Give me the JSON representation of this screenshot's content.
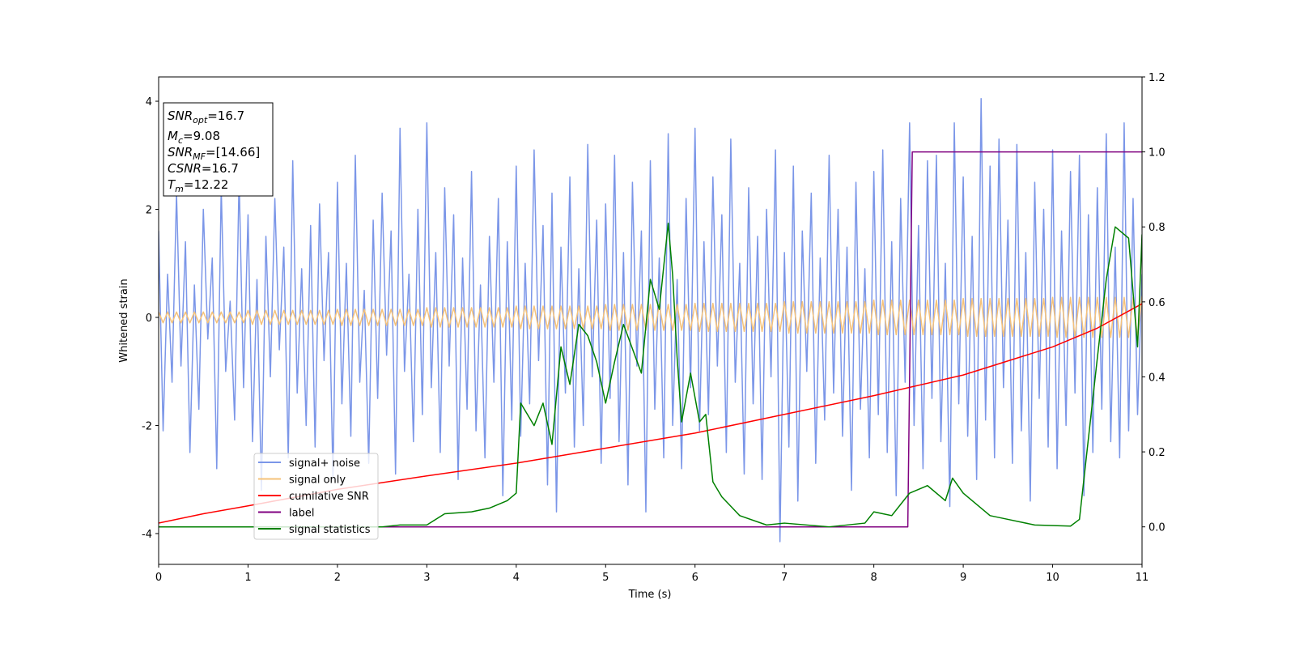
{
  "chart_data": {
    "type": "line",
    "xlabel": "Time (s)",
    "ylabel": "Whitened strain",
    "xlim": [
      0,
      11
    ],
    "xticks": [
      0,
      1,
      2,
      3,
      4,
      5,
      6,
      7,
      8,
      9,
      10,
      11
    ],
    "ylim": [
      -4.57,
      4.45
    ],
    "yticks": [
      -4,
      -2,
      0,
      2,
      4
    ],
    "y2lim": [
      -0.1,
      1.2
    ],
    "y2ticks": [
      {
        "value": 0,
        "label": "0.0"
      },
      0.2,
      0.4,
      0.6,
      0.8,
      {
        "value": 1,
        "label": "1.0"
      },
      1.2
    ],
    "legend": "lower left",
    "annotation": [
      {
        "text": "SNR",
        "sub": "opt",
        "suffix": "=16.7"
      },
      {
        "text": "M",
        "sub": "c",
        "suffix": "=9.08"
      },
      {
        "text": "SNR",
        "sub": "MF",
        "suffix": "=[14.66]"
      },
      {
        "text": "CSNR",
        "suffix": "=16.7"
      },
      {
        "text": "T",
        "sub": "m",
        "suffix": "=12.22"
      }
    ],
    "x": [
      0,
      0.05,
      0.1,
      0.15,
      0.2,
      0.25,
      0.3,
      0.35,
      0.4,
      0.45,
      0.5,
      0.55,
      0.6,
      0.65,
      0.7,
      0.75,
      0.8,
      0.85,
      0.9,
      0.95,
      1,
      1.05,
      1.1,
      1.15,
      1.2,
      1.25,
      1.3,
      1.35,
      1.4,
      1.45,
      1.5,
      1.55,
      1.6,
      1.65,
      1.7,
      1.75,
      1.8,
      1.85,
      1.9,
      1.95,
      2,
      2.05,
      2.1,
      2.15,
      2.2,
      2.25,
      2.3,
      2.35,
      2.4,
      2.45,
      2.5,
      2.55,
      2.6,
      2.65,
      2.7,
      2.75,
      2.8,
      2.85,
      2.9,
      2.95,
      3,
      3.05,
      3.1,
      3.15,
      3.2,
      3.25,
      3.3,
      3.35,
      3.4,
      3.45,
      3.5,
      3.55,
      3.6,
      3.65,
      3.7,
      3.75,
      3.8,
      3.85,
      3.9,
      3.95,
      4,
      4.05,
      4.1,
      4.15,
      4.2,
      4.25,
      4.3,
      4.35,
      4.4,
      4.45,
      4.5,
      4.55,
      4.6,
      4.65,
      4.7,
      4.75,
      4.8,
      4.85,
      4.9,
      4.95,
      5,
      5.05,
      5.1,
      5.15,
      5.2,
      5.25,
      5.3,
      5.35,
      5.4,
      5.45,
      5.5,
      5.55,
      5.6,
      5.65,
      5.7,
      5.75,
      5.8,
      5.85,
      5.9,
      5.95,
      6,
      6.05,
      6.1,
      6.15,
      6.2,
      6.25,
      6.3,
      6.35,
      6.4,
      6.45,
      6.5,
      6.55,
      6.6,
      6.65,
      6.7,
      6.75,
      6.8,
      6.85,
      6.9,
      6.95,
      7,
      7.05,
      7.1,
      7.15,
      7.2,
      7.25,
      7.3,
      7.35,
      7.4,
      7.45,
      7.5,
      7.55,
      7.6,
      7.65,
      7.7,
      7.75,
      7.8,
      7.85,
      7.9,
      7.95,
      8,
      8.05,
      8.1,
      8.15,
      8.2,
      8.25,
      8.3,
      8.35,
      8.4,
      8.45,
      8.5,
      8.55,
      8.6,
      8.65,
      8.7,
      8.75,
      8.8,
      8.85,
      8.9,
      8.95,
      9,
      9.05,
      9.1,
      9.15,
      9.2,
      9.25,
      9.3,
      9.35,
      9.4,
      9.45,
      9.5,
      9.55,
      9.6,
      9.65,
      9.7,
      9.75,
      9.8,
      9.85,
      9.9,
      9.95,
      10,
      10.05,
      10.1,
      10.15,
      10.2,
      10.25,
      10.3,
      10.35,
      10.4,
      10.45,
      10.5,
      10.55,
      10.6,
      10.65,
      10.7,
      10.75,
      10.8,
      10.85,
      10.9,
      10.95,
      11
    ],
    "series": [
      {
        "name": "signal+ noise",
        "color": "#7b96e8",
        "values": [
          1.6,
          -2.1,
          0.8,
          -1.2,
          2.3,
          -0.9,
          1.4,
          -2.5,
          0.6,
          -1.7,
          2.0,
          -0.4,
          1.1,
          -2.8,
          2.4,
          -1.0,
          0.3,
          -1.9,
          2.6,
          -1.3,
          1.9,
          -2.3,
          0.7,
          -3.2,
          1.5,
          -1.1,
          2.2,
          -0.6,
          1.3,
          -2.6,
          2.9,
          -1.4,
          0.9,
          -2.0,
          1.7,
          -2.4,
          2.1,
          -0.8,
          1.2,
          -3.0,
          2.5,
          -1.6,
          1.0,
          -2.2,
          3.0,
          -1.2,
          0.5,
          -2.7,
          1.8,
          -1.5,
          2.3,
          -0.7,
          1.6,
          -2.9,
          3.5,
          -1.0,
          0.8,
          -2.3,
          2.0,
          -1.8,
          3.6,
          -1.3,
          1.2,
          -2.5,
          2.4,
          -0.9,
          1.9,
          -3.0,
          1.1,
          -1.7,
          2.7,
          -2.1,
          0.6,
          -2.6,
          1.5,
          -1.2,
          2.2,
          -3.3,
          1.4,
          -1.9,
          2.8,
          -2.2,
          1.0,
          -1.6,
          3.1,
          -0.8,
          1.7,
          -3.1,
          2.3,
          -3.6,
          1.3,
          -1.4,
          2.6,
          -2.4,
          0.9,
          -2.0,
          3.2,
          -1.1,
          1.8,
          -2.7,
          2.1,
          -1.5,
          3.0,
          -2.3,
          1.2,
          -3.1,
          2.5,
          -0.9,
          1.6,
          -3.6,
          2.9,
          -1.7,
          1.1,
          -2.6,
          3.4,
          -2.0,
          0.7,
          -2.8,
          2.2,
          -1.3,
          3.5,
          -2.1,
          1.4,
          -1.8,
          2.6,
          -0.9,
          1.9,
          -2.5,
          3.3,
          -1.2,
          1.0,
          -2.9,
          2.4,
          -1.6,
          1.5,
          -3.0,
          2.0,
          -1.1,
          3.1,
          -4.15,
          1.2,
          -2.4,
          2.8,
          -3.4,
          1.6,
          -1.0,
          2.3,
          -2.7,
          1.1,
          -1.9,
          3.0,
          -1.4,
          2.0,
          -2.2,
          1.3,
          -3.2,
          2.5,
          -1.7,
          0.9,
          -2.6,
          2.7,
          -1.8,
          3.1,
          -2.5,
          1.4,
          -3.3,
          2.2,
          -1.2,
          3.6,
          -2.0,
          1.7,
          -2.8,
          2.9,
          -1.5,
          3.0,
          -2.3,
          1.0,
          -3.5,
          3.6,
          -1.6,
          2.6,
          -2.2,
          1.5,
          -3.0,
          4.05,
          -1.9,
          2.8,
          -2.6,
          3.3,
          -1.3,
          1.8,
          -2.7,
          3.2,
          -2.1,
          1.2,
          -3.4,
          2.5,
          -1.5,
          2.0,
          -2.4,
          3.1,
          -2.8,
          1.6,
          -2.0,
          2.7,
          -1.4,
          3.0,
          -3.3,
          1.9,
          -2.5,
          2.4,
          -1.7,
          3.4,
          -2.3,
          1.3,
          -2.6,
          3.6,
          -2.1,
          2.2,
          -1.8,
          0.8
        ]
      },
      {
        "name": "signal only",
        "color": "#f5c27a",
        "values": [
          0.1,
          -0.1,
          0.1,
          -0.1,
          0.1,
          -0.1,
          0.1,
          -0.1,
          0.1,
          -0.1,
          0.1,
          -0.1,
          0.1,
          -0.1,
          0.1,
          -0.1,
          0.1,
          -0.1,
          0.1,
          -0.1,
          0.13,
          -0.13,
          0.13,
          -0.13,
          0.13,
          -0.13,
          0.13,
          -0.13,
          0.13,
          -0.13,
          0.13,
          -0.13,
          0.13,
          -0.13,
          0.13,
          -0.13,
          0.13,
          -0.13,
          0.13,
          -0.13,
          0.15,
          -0.15,
          0.15,
          -0.15,
          0.15,
          -0.15,
          0.15,
          -0.15,
          0.15,
          -0.15,
          0.15,
          -0.15,
          0.15,
          -0.15,
          0.15,
          -0.15,
          0.15,
          -0.15,
          0.15,
          -0.15,
          0.18,
          -0.18,
          0.18,
          -0.18,
          0.18,
          -0.18,
          0.18,
          -0.18,
          0.18,
          -0.18,
          0.18,
          -0.18,
          0.18,
          -0.18,
          0.18,
          -0.18,
          0.18,
          -0.18,
          0.18,
          -0.18,
          0.21,
          -0.21,
          0.21,
          -0.21,
          0.21,
          -0.21,
          0.21,
          -0.21,
          0.21,
          -0.21,
          0.21,
          -0.21,
          0.21,
          -0.21,
          0.21,
          -0.21,
          0.21,
          -0.21,
          0.21,
          -0.21,
          0.24,
          -0.24,
          0.24,
          -0.24,
          0.24,
          -0.24,
          0.24,
          -0.24,
          0.24,
          -0.24,
          0.24,
          -0.24,
          0.24,
          -0.24,
          0.24,
          -0.24,
          0.24,
          -0.24,
          0.24,
          -0.24,
          0.26,
          -0.26,
          0.26,
          -0.26,
          0.26,
          -0.26,
          0.26,
          -0.26,
          0.26,
          -0.26,
          0.26,
          -0.26,
          0.26,
          -0.26,
          0.26,
          -0.26,
          0.26,
          -0.26,
          0.26,
          -0.26,
          0.29,
          -0.29,
          0.29,
          -0.29,
          0.29,
          -0.29,
          0.29,
          -0.29,
          0.29,
          -0.29,
          0.29,
          -0.29,
          0.29,
          -0.29,
          0.29,
          -0.29,
          0.29,
          -0.29,
          0.29,
          -0.29,
          0.32,
          -0.32,
          0.32,
          -0.32,
          0.32,
          -0.32,
          0.32,
          -0.32,
          0.32,
          -0.32,
          0.32,
          -0.32,
          0.32,
          -0.32,
          0.32,
          -0.32,
          0.32,
          -0.32,
          0.32,
          -0.32,
          0.35,
          -0.35,
          0.35,
          -0.35,
          0.35,
          -0.35,
          0.35,
          -0.35,
          0.35,
          -0.35,
          0.35,
          -0.35,
          0.35,
          -0.35,
          0.35,
          -0.35,
          0.35,
          -0.35,
          0.35,
          -0.35,
          0.37,
          -0.37,
          0.37,
          -0.37,
          0.37,
          -0.37,
          0.37,
          -0.37,
          0.37,
          -0.37,
          0.37,
          -0.37,
          0.37,
          -0.37,
          0.37,
          -0.37,
          0.37,
          -0.37,
          0.37,
          -0.37,
          0.4
        ]
      },
      {
        "name": "cumilative SNR",
        "color": "#ff0000",
        "axis": "y2",
        "x": [
          0,
          0.5,
          1,
          2,
          3,
          4,
          5,
          6,
          7,
          8,
          9,
          10,
          10.5,
          11
        ],
        "values": [
          0.01,
          0.035,
          0.056,
          0.1,
          0.136,
          0.17,
          0.21,
          0.25,
          0.3,
          0.35,
          0.405,
          0.48,
          0.53,
          0.595
        ]
      },
      {
        "name": "label",
        "color": "#800080",
        "axis": "y2",
        "x": [
          0,
          8.38,
          8.43,
          11
        ],
        "values": [
          0,
          0,
          1,
          1
        ]
      },
      {
        "name": "signal statistics",
        "color": "#008000",
        "axis": "y2",
        "x": [
          0,
          1,
          2,
          2.5,
          2.7,
          3,
          3.2,
          3.5,
          3.7,
          3.9,
          4,
          4.05,
          4.2,
          4.3,
          4.4,
          4.5,
          4.6,
          4.7,
          4.8,
          4.9,
          5,
          5.1,
          5.2,
          5.4,
          5.5,
          5.6,
          5.7,
          5.75,
          5.8,
          5.85,
          5.95,
          6.05,
          6.12,
          6.2,
          6.3,
          6.5,
          6.8,
          7,
          7.5,
          7.9,
          8,
          8.2,
          8.4,
          8.6,
          8.8,
          8.88,
          9,
          9.3,
          9.5,
          9.8,
          10.2,
          10.3,
          10.5,
          10.6,
          10.7,
          10.85,
          10.95,
          11
        ],
        "values": [
          0,
          0,
          0,
          0,
          0.005,
          0.005,
          0.035,
          0.04,
          0.05,
          0.07,
          0.09,
          0.33,
          0.27,
          0.33,
          0.22,
          0.48,
          0.38,
          0.54,
          0.51,
          0.44,
          0.33,
          0.44,
          0.54,
          0.41,
          0.66,
          0.58,
          0.81,
          0.67,
          0.45,
          0.28,
          0.41,
          0.28,
          0.3,
          0.12,
          0.08,
          0.03,
          0.005,
          0.01,
          0,
          0.01,
          0.04,
          0.03,
          0.09,
          0.11,
          0.07,
          0.13,
          0.09,
          0.03,
          0.02,
          0.005,
          0.002,
          0.02,
          0.45,
          0.66,
          0.8,
          0.77,
          0.48,
          0.78
        ]
      }
    ]
  }
}
